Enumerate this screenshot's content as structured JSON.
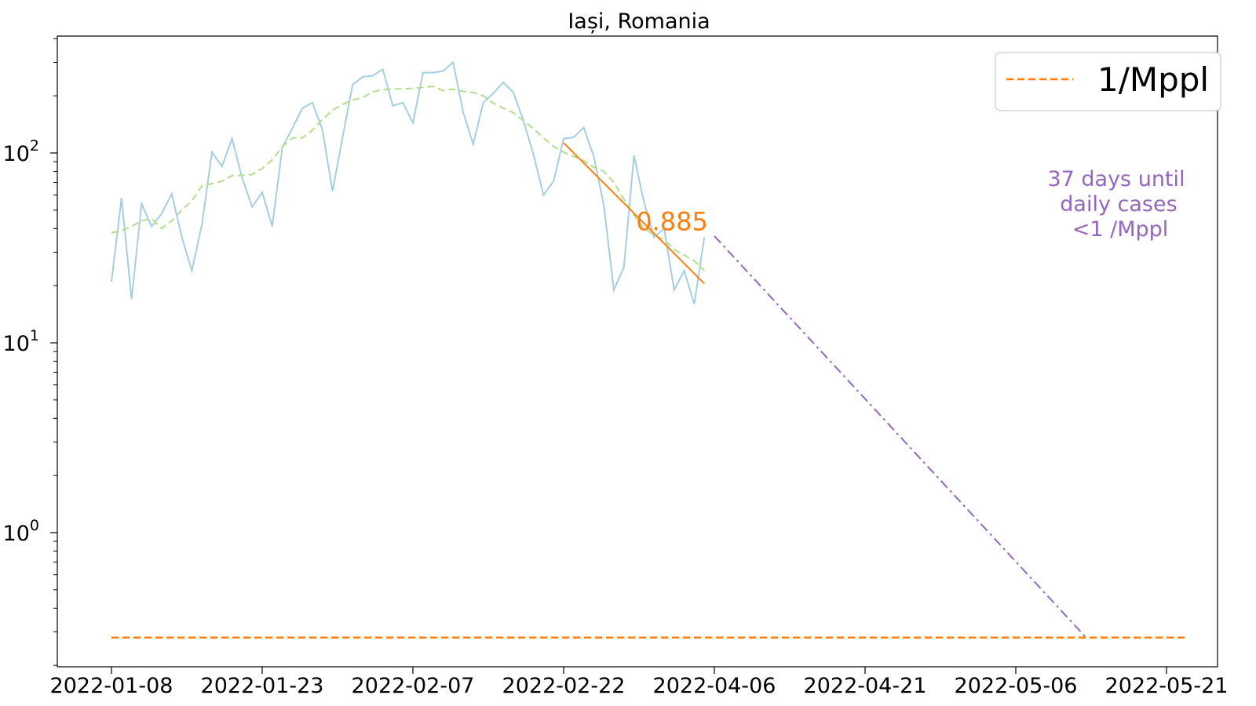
{
  "chart_data": {
    "type": "line",
    "title": "Iași, Romania",
    "xlabel": "",
    "ylabel": "",
    "y_scale": "log",
    "ylim": [
      0.2,
      420
    ],
    "x_tick_labels": [
      "2022-01-08",
      "2022-01-23",
      "2022-02-07",
      "2022-02-22",
      "2022-04-06",
      "2022-04-21",
      "2022-05-06",
      "2022-05-21"
    ],
    "y_ticks": [
      {
        "value": 1,
        "base": "10",
        "exp": "0"
      },
      {
        "value": 10,
        "base": "10",
        "exp": "1"
      },
      {
        "value": 100,
        "base": "10",
        "exp": "2"
      }
    ],
    "grid": false,
    "legend": {
      "placement": "top-right",
      "entries": [
        {
          "label": "1/Mppl",
          "color": "#ff7f0e",
          "style": "dashed"
        }
      ]
    },
    "series": [
      {
        "role": "daily",
        "color": "#a6cee3",
        "style": "solid",
        "x": [
          0,
          1,
          2,
          3,
          4,
          5,
          6,
          7,
          8,
          9,
          10,
          11,
          12,
          13,
          14,
          15,
          16,
          17,
          18,
          19,
          20,
          21,
          22,
          23,
          24,
          25,
          26,
          27,
          28,
          29,
          30,
          31,
          32,
          33,
          34,
          35,
          36,
          37,
          38,
          39,
          40,
          41,
          42,
          43,
          44,
          45,
          46,
          47,
          48,
          49,
          50,
          51,
          52,
          53,
          54,
          55,
          56,
          57,
          58,
          59
        ],
        "values": [
          21,
          58,
          17,
          54,
          41,
          48,
          61,
          36,
          24,
          42,
          101,
          85,
          119,
          74,
          52,
          62,
          41,
          107,
          135,
          172,
          184,
          132,
          63,
          121,
          229,
          252,
          255,
          276,
          177,
          184,
          144,
          265,
          265,
          270,
          300,
          164,
          111,
          184,
          206,
          236,
          208,
          148,
          98,
          60,
          71,
          119,
          121,
          136,
          96,
          53,
          19,
          25,
          97,
          55,
          36,
          40,
          19,
          24,
          16,
          36
        ]
      },
      {
        "role": "smoothed",
        "color": "#b2df8a",
        "style": "dashed",
        "x": [
          0,
          1,
          2,
          3,
          4,
          5,
          6,
          7,
          8,
          9,
          10,
          11,
          12,
          13,
          14,
          15,
          16,
          17,
          18,
          19,
          20,
          21,
          22,
          23,
          24,
          25,
          26,
          27,
          28,
          29,
          30,
          31,
          32,
          33,
          34,
          35,
          36,
          37,
          38,
          39,
          40,
          41,
          42,
          43,
          44,
          45,
          46,
          47,
          48,
          49,
          50,
          51,
          52,
          53,
          54,
          55,
          56,
          57,
          58,
          59
        ],
        "values": [
          38,
          39,
          41,
          44,
          45,
          40,
          44,
          50,
          56,
          67,
          69,
          71,
          76,
          76,
          77,
          83,
          92,
          108,
          120,
          120,
          132,
          150,
          168,
          180,
          190,
          196,
          210,
          215,
          217,
          218,
          219,
          222,
          224,
          213,
          217,
          211,
          208,
          200,
          183,
          172,
          163,
          148,
          134,
          120,
          108,
          101,
          96,
          91,
          84,
          80,
          70,
          57,
          47,
          40,
          37,
          35,
          31,
          29,
          27,
          24
        ]
      },
      {
        "role": "fit",
        "color": "#ff7f0e",
        "style": "solid",
        "x": [
          45,
          59
        ],
        "values": [
          113,
          20.5
        ]
      },
      {
        "role": "projection",
        "color": "#9467bd",
        "style": "dashdot",
        "x": [
          60,
          97
        ],
        "values": [
          36.5,
          0.28
        ]
      },
      {
        "role": "threshold",
        "label": "1/Mppl",
        "color": "#ff7f0e",
        "style": "dashed",
        "x": [
          0,
          107
        ],
        "values": [
          0.28,
          0.28
        ]
      }
    ],
    "annotations": {
      "rate": {
        "text": "0.885",
        "x": 55,
        "y": 44,
        "color": "#ff7f0e"
      },
      "days_until": {
        "lines": [
          "37 days until",
          "daily cases",
          "<1 /Mppl"
        ],
        "color": "#9467bd"
      }
    }
  }
}
